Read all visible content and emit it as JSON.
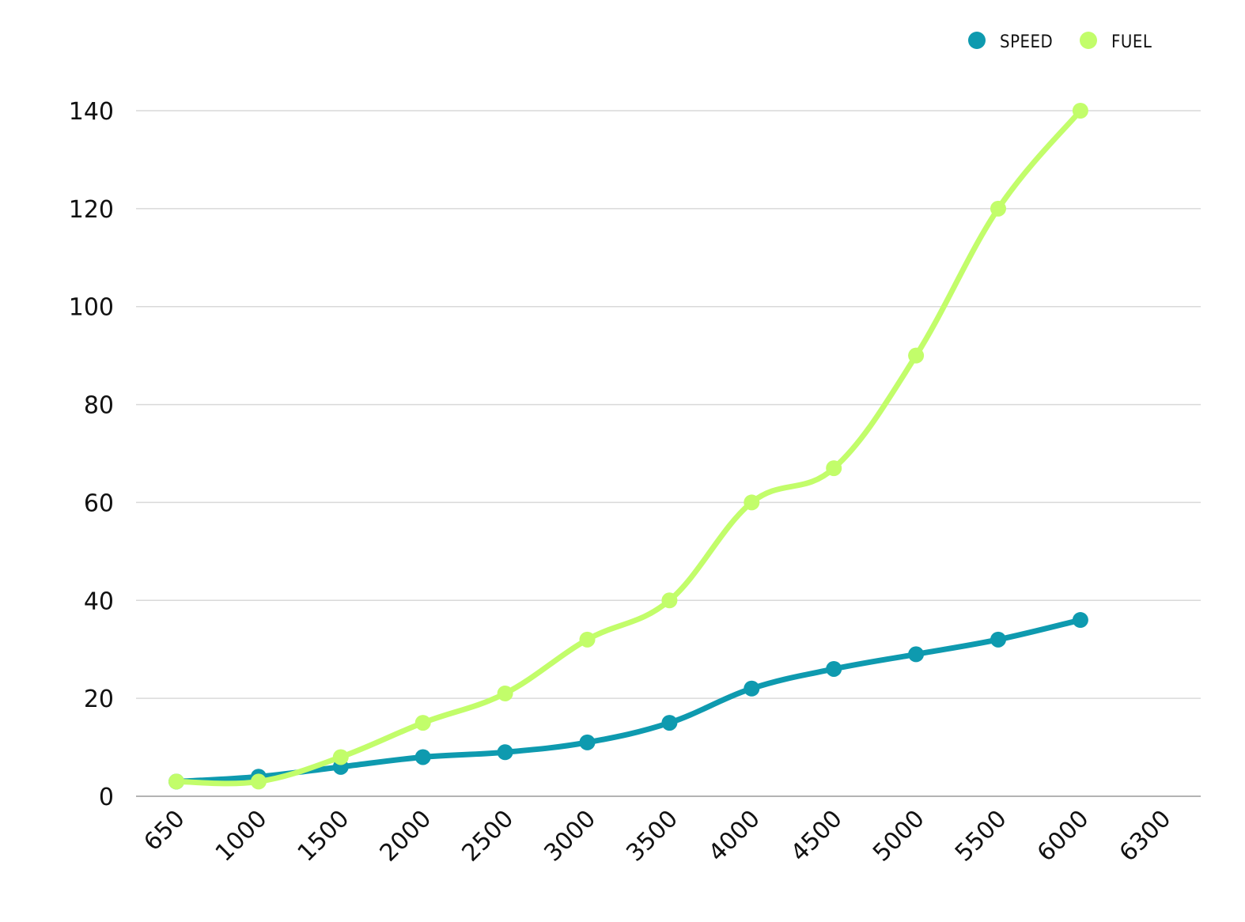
{
  "chart_data": {
    "type": "line",
    "categories": [
      "650",
      "1000",
      "1500",
      "2000",
      "2500",
      "3000",
      "3500",
      "4000",
      "4500",
      "5000",
      "5500",
      "6000",
      "6300"
    ],
    "series": [
      {
        "name": "SPEED",
        "color": "#0e9aaf",
        "values": [
          3,
          4,
          6,
          8,
          9,
          11,
          15,
          22,
          26,
          29,
          32,
          36,
          null
        ]
      },
      {
        "name": "FUEL",
        "color": "#c2fd6a",
        "values": [
          3,
          3,
          8,
          15,
          21,
          32,
          40,
          60,
          67,
          90,
          120,
          140,
          null
        ]
      }
    ],
    "ylim": [
      0,
      140
    ],
    "yticks": [
      "0",
      "20",
      "40",
      "60",
      "80",
      "100",
      "120",
      "140"
    ],
    "title": "",
    "xlabel": "",
    "ylabel": "",
    "grid": true,
    "legend_position": "top-right"
  }
}
